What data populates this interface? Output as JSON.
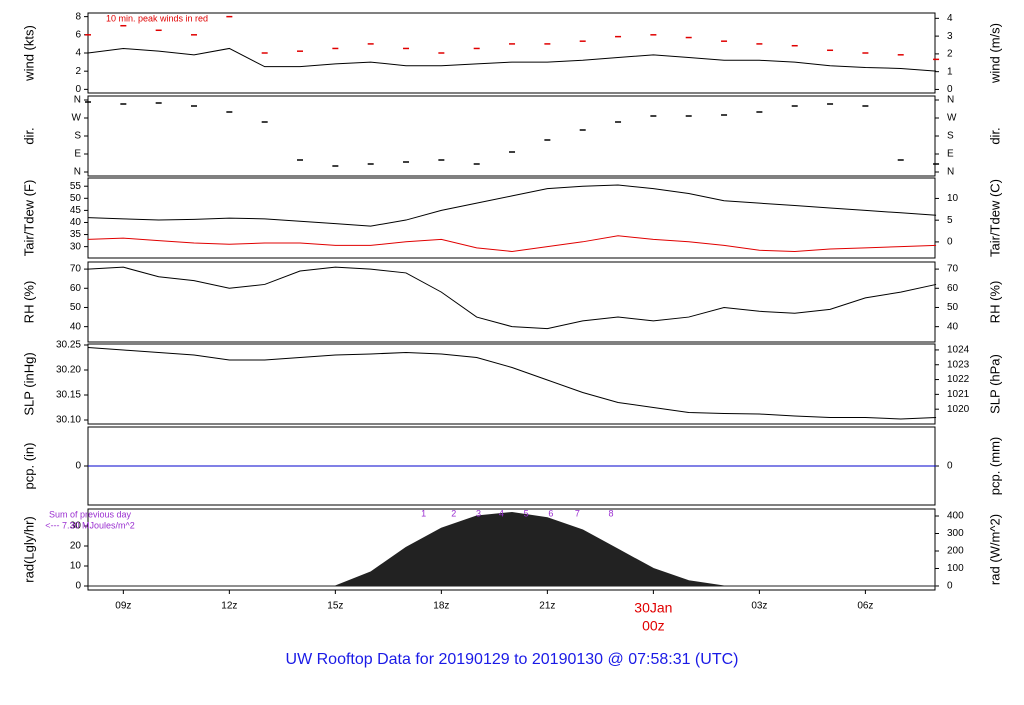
{
  "title": "UW Rooftop Data for 20190129  to  20190130 @ 07:58:31  (UTC)",
  "chart_data": [
    {
      "type": "line",
      "ylabel": "wind (kts)",
      "y2label": "wind (m/s)",
      "note": "10 min. peak winds in red",
      "ylim": [
        -0.4,
        8.4
      ],
      "yticks": [
        0,
        2,
        4,
        6,
        8
      ],
      "y2lim": [
        -0.2,
        4.3
      ],
      "y2ticks": [
        0,
        1,
        2,
        3,
        4
      ],
      "x": [
        8,
        9,
        10,
        11,
        12,
        13,
        14,
        15,
        16,
        17,
        18,
        19,
        20,
        21,
        22,
        23,
        24,
        25,
        26,
        27,
        28,
        29,
        30,
        31,
        32
      ],
      "series": [
        {
          "color": "#000000",
          "mode": "line",
          "values": [
            4,
            4.5,
            4.2,
            3.8,
            4.5,
            2.5,
            2.5,
            2.8,
            3,
            2.6,
            2.6,
            2.8,
            3,
            3,
            3.2,
            3.5,
            3.8,
            3.5,
            3.2,
            3.2,
            3,
            2.6,
            2.4,
            2.3,
            2
          ]
        },
        {
          "color": "#e00000",
          "mode": "points",
          "values": [
            6,
            7,
            6.5,
            6,
            8,
            4,
            4.2,
            4.5,
            5,
            4.5,
            4,
            4.5,
            5,
            5,
            5.3,
            5.8,
            6,
            5.7,
            5.3,
            5,
            4.8,
            4.3,
            4,
            3.8,
            3.3
          ]
        }
      ]
    },
    {
      "type": "scatter",
      "ylabel": "dir.",
      "y2label": "dir.",
      "ylim": [
        -20,
        380
      ],
      "yticks": [
        {
          "value": 0,
          "label": "N"
        },
        {
          "value": 90,
          "label": "E"
        },
        {
          "value": 180,
          "label": "S"
        },
        {
          "value": 270,
          "label": "W"
        },
        {
          "value": 360,
          "label": "N"
        }
      ],
      "y2lim": [
        -20,
        380
      ],
      "y2ticks": [
        {
          "value": 0,
          "label": "N"
        },
        {
          "value": 90,
          "label": "E"
        },
        {
          "value": 180,
          "label": "S"
        },
        {
          "value": 270,
          "label": "W"
        },
        {
          "value": 360,
          "label": "N"
        }
      ],
      "x": [
        8,
        9,
        10,
        11,
        12,
        13,
        14,
        15,
        16,
        17,
        18,
        19,
        20,
        21,
        22,
        23,
        24,
        25,
        26,
        27,
        28,
        29,
        30,
        31,
        32
      ],
      "series": [
        {
          "color": "#000000",
          "mode": "points",
          "values": [
            350,
            340,
            345,
            330,
            300,
            250,
            60,
            30,
            40,
            50,
            60,
            40,
            100,
            160,
            210,
            250,
            280,
            280,
            285,
            300,
            330,
            340,
            330,
            60,
            40
          ]
        }
      ]
    },
    {
      "type": "line",
      "ylabel": "Tair/Tdew (F)",
      "y2label": "Tair/Tdew (C)",
      "ylim": [
        25.3,
        58.4
      ],
      "yticks": [
        30,
        35,
        40,
        45,
        50,
        55
      ],
      "y2lim": [
        -3.7,
        14.7
      ],
      "y2ticks": [
        0,
        5,
        10
      ],
      "x": [
        8,
        9,
        10,
        11,
        12,
        13,
        14,
        15,
        16,
        17,
        18,
        19,
        20,
        21,
        22,
        23,
        24,
        25,
        26,
        27,
        28,
        29,
        30,
        31,
        32
      ],
      "series": [
        {
          "color": "#000000",
          "mode": "line",
          "values": [
            42,
            41.5,
            41,
            41.3,
            41.8,
            41.5,
            40.5,
            39.5,
            38.5,
            41,
            45,
            48,
            51,
            54,
            55,
            55.5,
            54,
            52,
            49,
            48,
            47,
            46,
            45,
            44,
            43
          ]
        },
        {
          "color": "#e00000",
          "mode": "line",
          "values": [
            33,
            33.5,
            32.5,
            31.5,
            31,
            31.5,
            31.5,
            30.5,
            30.5,
            32,
            33,
            29.5,
            28,
            30,
            32,
            34.5,
            33,
            32,
            30.5,
            28.5,
            28,
            29,
            29.5,
            30,
            30.5
          ]
        }
      ]
    },
    {
      "type": "line",
      "ylabel": "RH (%)",
      "y2label": "RH (%)",
      "ylim": [
        32,
        73.7
      ],
      "yticks": [
        40,
        50,
        60,
        70
      ],
      "y2lim": [
        32,
        73.7
      ],
      "y2ticks": [
        40,
        50,
        60,
        70
      ],
      "x": [
        8,
        9,
        10,
        11,
        12,
        13,
        14,
        15,
        16,
        17,
        18,
        19,
        20,
        21,
        22,
        23,
        24,
        25,
        26,
        27,
        28,
        29,
        30,
        31,
        32
      ],
      "series": [
        {
          "color": "#000000",
          "mode": "line",
          "values": [
            70,
            71,
            66,
            64,
            60,
            62,
            69,
            71,
            70,
            68,
            58,
            45,
            40,
            39,
            43,
            45,
            43,
            45,
            50,
            48,
            47,
            49,
            55,
            58,
            62
          ]
        }
      ]
    },
    {
      "type": "line",
      "ylabel": "SLP (inHg)",
      "y2label": "SLP (hPa)",
      "ylim": [
        30.092,
        30.252
      ],
      "yticks": [
        {
          "value": 30.1,
          "label": "30.10"
        },
        30.15,
        {
          "value": 30.2,
          "label": "30.20"
        },
        30.25
      ],
      "y2lim": [
        1019.0,
        1024.4
      ],
      "y2ticks": [
        1020,
        1021,
        1022,
        1023,
        1024
      ],
      "x": [
        8,
        9,
        10,
        11,
        12,
        13,
        14,
        15,
        16,
        17,
        18,
        19,
        20,
        21,
        22,
        23,
        24,
        25,
        26,
        27,
        28,
        29,
        30,
        31,
        32
      ],
      "series": [
        {
          "color": "#000000",
          "mode": "line",
          "values": [
            30.245,
            30.24,
            30.235,
            30.23,
            30.22,
            30.22,
            30.225,
            30.23,
            30.232,
            30.235,
            30.232,
            30.225,
            30.205,
            30.18,
            30.155,
            30.135,
            30.125,
            30.115,
            30.113,
            30.112,
            30.108,
            30.105,
            30.105,
            30.102,
            30.105
          ]
        }
      ]
    },
    {
      "type": "line",
      "ylabel": "pcp. (in)",
      "y2label": "pcp. (mm)",
      "ylim": [
        -1,
        1
      ],
      "yticks": [
        0
      ],
      "y2lim": [
        -1,
        1
      ],
      "y2ticks": [
        0
      ],
      "x": [
        8,
        9,
        10,
        11,
        12,
        13,
        14,
        15,
        16,
        17,
        18,
        19,
        20,
        21,
        22,
        23,
        24,
        25,
        26,
        27,
        28,
        29,
        30,
        31,
        32
      ],
      "series": [
        {
          "color": "#0000cc",
          "mode": "line",
          "values": [
            0,
            0,
            0,
            0,
            0,
            0,
            0,
            0,
            0,
            0,
            0,
            0,
            0,
            0,
            0,
            0,
            0,
            0,
            0,
            0,
            0,
            0,
            0,
            0,
            0
          ]
        }
      ]
    },
    {
      "type": "area",
      "ylabel": "rad(Lgly/hr)",
      "y2label": "rad (W/m^2)",
      "note": "Sum of previous day",
      "note2": "<--- 7.30 MJoules/m^2",
      "ylim": [
        -2,
        38.5
      ],
      "yticks": [
        0,
        10,
        20,
        30
      ],
      "y2lim": [
        -23,
        440
      ],
      "y2ticks": [
        0,
        100,
        200,
        300,
        400
      ],
      "xlim": [
        8,
        31.97
      ],
      "xticks": [
        {
          "value": 9,
          "label": "09z"
        },
        {
          "value": 12,
          "label": "12z"
        },
        {
          "value": 15,
          "label": "15z"
        },
        {
          "value": 18,
          "label": "18z"
        },
        {
          "value": 21,
          "label": "21z"
        },
        {
          "value": 24,
          "label": "00z"
        },
        {
          "value": 27,
          "label": "03z"
        },
        {
          "value": 30,
          "label": "06z"
        }
      ],
      "day_label": {
        "value": 24,
        "label": "30Jan"
      },
      "hour_marks": [
        {
          "label": "1",
          "x": 17.5
        },
        {
          "label": "2",
          "x": 18.35
        },
        {
          "label": "3",
          "x": 19.05
        },
        {
          "label": "4",
          "x": 19.7
        },
        {
          "label": "5",
          "x": 20.4
        },
        {
          "label": "6",
          "x": 21.1
        },
        {
          "label": "7",
          "x": 21.85
        },
        {
          "label": "8",
          "x": 22.8
        }
      ],
      "x": [
        8,
        9,
        10,
        11,
        12,
        13,
        14,
        15,
        16,
        17,
        18,
        19,
        20,
        21,
        22,
        23,
        24,
        25,
        26,
        27,
        28,
        29,
        30,
        31,
        32
      ],
      "series": [
        {
          "color": "#222222",
          "mode": "area",
          "axis": "y2",
          "values": [
            0,
            0,
            0,
            0,
            0,
            0,
            0,
            0,
            80,
            220,
            330,
            400,
            420,
            390,
            320,
            210,
            100,
            30,
            0,
            0,
            0,
            0,
            0,
            0,
            0
          ]
        }
      ]
    }
  ]
}
